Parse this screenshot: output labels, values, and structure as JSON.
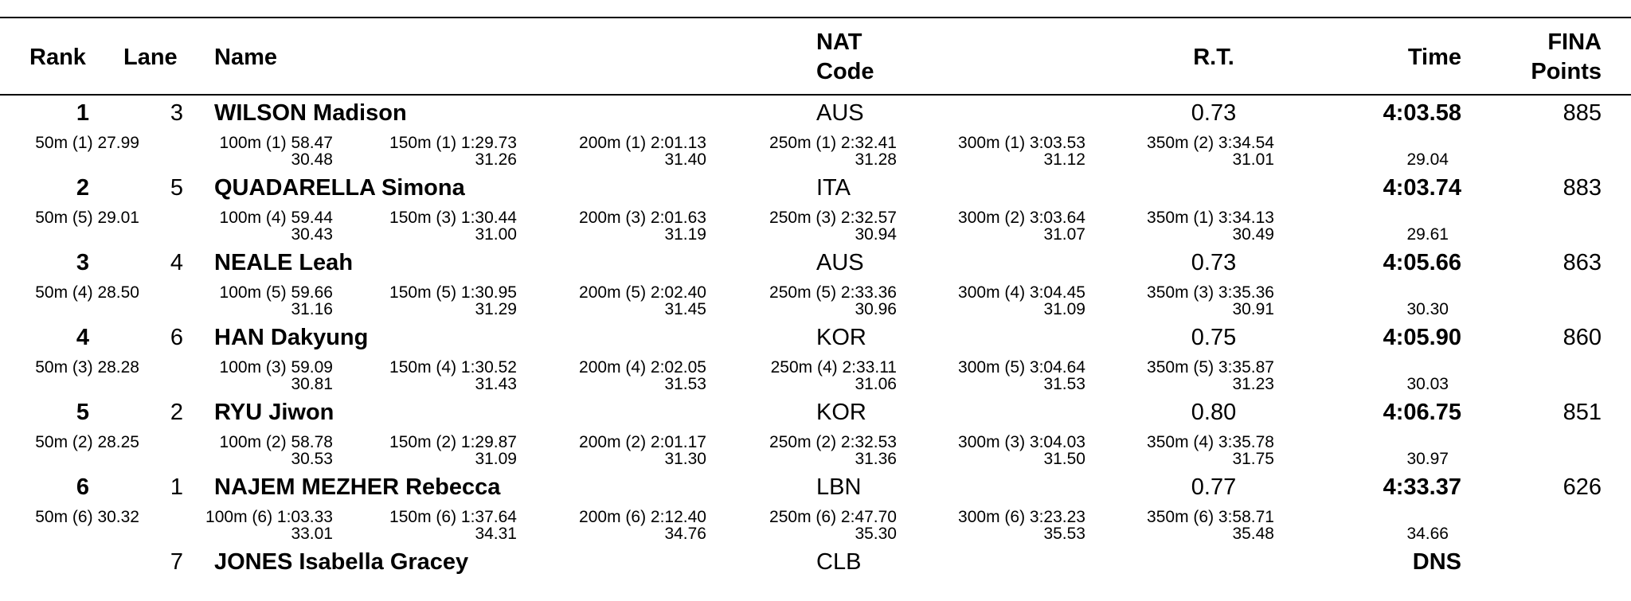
{
  "header": {
    "rank": "Rank",
    "lane": "Lane",
    "name": "Name",
    "nat": [
      "NAT",
      "Code"
    ],
    "rt": "R.T.",
    "time": "Time",
    "points": [
      "FINA",
      "Points"
    ]
  },
  "rows": [
    {
      "rank": "1",
      "lane": "3",
      "name": "WILSON Madison",
      "nat": "AUS",
      "rt": "0.73",
      "time": "4:03.58",
      "points": "885",
      "splits": [
        {
          "dist": "50m",
          "pos": "(1)",
          "cum": "27.99"
        },
        {
          "dist": "100m",
          "pos": "(1)",
          "cum": "58.47",
          "lap": "30.48"
        },
        {
          "dist": "150m",
          "pos": "(1)",
          "cum": "1:29.73",
          "lap": "31.26"
        },
        {
          "dist": "200m",
          "pos": "(1)",
          "cum": "2:01.13",
          "lap": "31.40"
        },
        {
          "dist": "250m",
          "pos": "(1)",
          "cum": "2:32.41",
          "lap": "31.28"
        },
        {
          "dist": "300m",
          "pos": "(1)",
          "cum": "3:03.53",
          "lap": "31.12"
        },
        {
          "dist": "350m",
          "pos": "(2)",
          "cum": "3:34.54",
          "lap": "31.01"
        }
      ],
      "final_lap": "29.04"
    },
    {
      "rank": "2",
      "lane": "5",
      "name": "QUADARELLA Simona",
      "nat": "ITA",
      "time": "4:03.74",
      "points": "883",
      "splits": [
        {
          "dist": "50m",
          "pos": "(5)",
          "cum": "29.01"
        },
        {
          "dist": "100m",
          "pos": "(4)",
          "cum": "59.44",
          "lap": "30.43"
        },
        {
          "dist": "150m",
          "pos": "(3)",
          "cum": "1:30.44",
          "lap": "31.00"
        },
        {
          "dist": "200m",
          "pos": "(3)",
          "cum": "2:01.63",
          "lap": "31.19"
        },
        {
          "dist": "250m",
          "pos": "(3)",
          "cum": "2:32.57",
          "lap": "30.94"
        },
        {
          "dist": "300m",
          "pos": "(2)",
          "cum": "3:03.64",
          "lap": "31.07"
        },
        {
          "dist": "350m",
          "pos": "(1)",
          "cum": "3:34.13",
          "lap": "30.49"
        }
      ],
      "final_lap": "29.61"
    },
    {
      "rank": "3",
      "lane": "4",
      "name": "NEALE Leah",
      "nat": "AUS",
      "rt": "0.73",
      "time": "4:05.66",
      "points": "863",
      "splits": [
        {
          "dist": "50m",
          "pos": "(4)",
          "cum": "28.50"
        },
        {
          "dist": "100m",
          "pos": "(5)",
          "cum": "59.66",
          "lap": "31.16"
        },
        {
          "dist": "150m",
          "pos": "(5)",
          "cum": "1:30.95",
          "lap": "31.29"
        },
        {
          "dist": "200m",
          "pos": "(5)",
          "cum": "2:02.40",
          "lap": "31.45"
        },
        {
          "dist": "250m",
          "pos": "(5)",
          "cum": "2:33.36",
          "lap": "30.96"
        },
        {
          "dist": "300m",
          "pos": "(4)",
          "cum": "3:04.45",
          "lap": "31.09"
        },
        {
          "dist": "350m",
          "pos": "(3)",
          "cum": "3:35.36",
          "lap": "30.91"
        }
      ],
      "final_lap": "30.30"
    },
    {
      "rank": "4",
      "lane": "6",
      "name": "HAN Dakyung",
      "nat": "KOR",
      "rt": "0.75",
      "time": "4:05.90",
      "points": "860",
      "splits": [
        {
          "dist": "50m",
          "pos": "(3)",
          "cum": "28.28"
        },
        {
          "dist": "100m",
          "pos": "(3)",
          "cum": "59.09",
          "lap": "30.81"
        },
        {
          "dist": "150m",
          "pos": "(4)",
          "cum": "1:30.52",
          "lap": "31.43"
        },
        {
          "dist": "200m",
          "pos": "(4)",
          "cum": "2:02.05",
          "lap": "31.53"
        },
        {
          "dist": "250m",
          "pos": "(4)",
          "cum": "2:33.11",
          "lap": "31.06"
        },
        {
          "dist": "300m",
          "pos": "(5)",
          "cum": "3:04.64",
          "lap": "31.53"
        },
        {
          "dist": "350m",
          "pos": "(5)",
          "cum": "3:35.87",
          "lap": "31.23"
        }
      ],
      "final_lap": "30.03"
    },
    {
      "rank": "5",
      "lane": "2",
      "name": "RYU Jiwon",
      "nat": "KOR",
      "rt": "0.80",
      "time": "4:06.75",
      "points": "851",
      "splits": [
        {
          "dist": "50m",
          "pos": "(2)",
          "cum": "28.25"
        },
        {
          "dist": "100m",
          "pos": "(2)",
          "cum": "58.78",
          "lap": "30.53"
        },
        {
          "dist": "150m",
          "pos": "(2)",
          "cum": "1:29.87",
          "lap": "31.09"
        },
        {
          "dist": "200m",
          "pos": "(2)",
          "cum": "2:01.17",
          "lap": "31.30"
        },
        {
          "dist": "250m",
          "pos": "(2)",
          "cum": "2:32.53",
          "lap": "31.36"
        },
        {
          "dist": "300m",
          "pos": "(3)",
          "cum": "3:04.03",
          "lap": "31.50"
        },
        {
          "dist": "350m",
          "pos": "(4)",
          "cum": "3:35.78",
          "lap": "31.75"
        }
      ],
      "final_lap": "30.97"
    },
    {
      "rank": "6",
      "lane": "1",
      "name": "NAJEM MEZHER Rebecca",
      "nat": "LBN",
      "rt": "0.77",
      "time": "4:33.37",
      "points": "626",
      "splits": [
        {
          "dist": "50m",
          "pos": "(6)",
          "cum": "30.32"
        },
        {
          "dist": "100m",
          "pos": "(6)",
          "cum": "1:03.33",
          "lap": "33.01"
        },
        {
          "dist": "150m",
          "pos": "(6)",
          "cum": "1:37.64",
          "lap": "34.31"
        },
        {
          "dist": "200m",
          "pos": "(6)",
          "cum": "2:12.40",
          "lap": "34.76"
        },
        {
          "dist": "250m",
          "pos": "(6)",
          "cum": "2:47.70",
          "lap": "35.30"
        },
        {
          "dist": "300m",
          "pos": "(6)",
          "cum": "3:23.23",
          "lap": "35.53"
        },
        {
          "dist": "350m",
          "pos": "(6)",
          "cum": "3:58.71",
          "lap": "35.48"
        }
      ],
      "final_lap": "34.66"
    },
    {
      "lane": "7",
      "name": "JONES Isabella Gracey",
      "nat": "CLB",
      "time": "DNS"
    }
  ]
}
